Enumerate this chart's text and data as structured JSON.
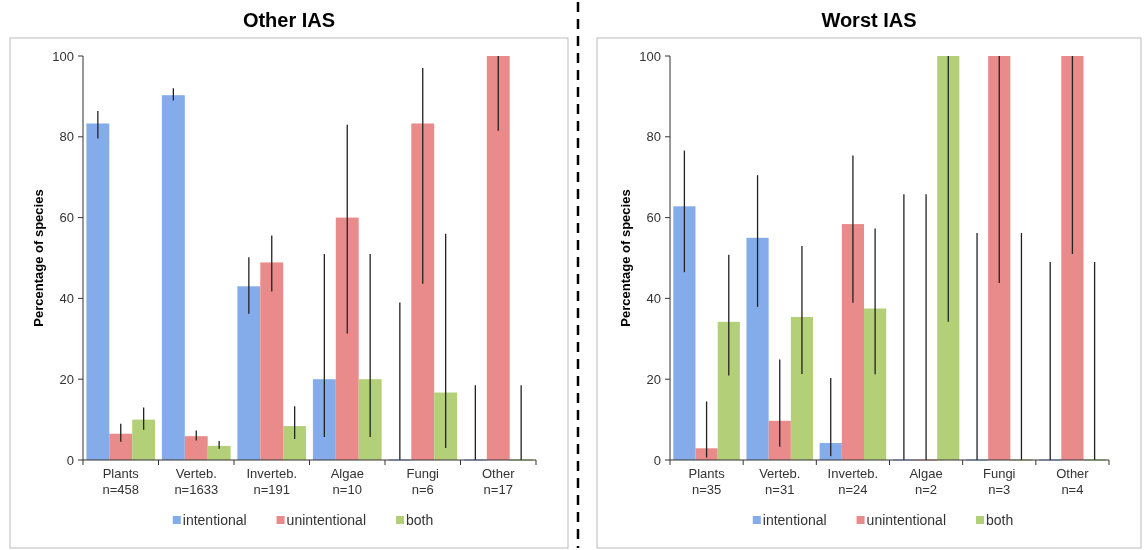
{
  "chart_data": [
    {
      "type": "bar",
      "title": "Other IAS",
      "ylabel": "Percentage of species",
      "categories": [
        "Plants\nn=458",
        "Verteb.\nn=1633",
        "Inverteb.\nn=191",
        "Algae\nn=10",
        "Fungi\nn=6",
        "Other\nn=17"
      ],
      "ylim": [
        0,
        100
      ],
      "yticks": [
        0,
        20,
        40,
        60,
        80,
        100
      ],
      "legend": "bottom",
      "grid": false,
      "series": [
        {
          "name": "intentional",
          "color": "#85acea",
          "values": [
            83.3,
            90.3,
            43,
            20,
            0,
            0
          ],
          "errors": [
            [
              79.6,
              86.4
            ],
            [
              89,
              92
            ],
            [
              36.2,
              50.2
            ],
            [
              5.7,
              51
            ],
            [
              0,
              39
            ],
            [
              0,
              18.5
            ]
          ]
        },
        {
          "name": "unintentional",
          "color": "#e98b8b",
          "values": [
            6.5,
            5.9,
            48.9,
            60,
            83.3,
            100
          ],
          "errors": [
            [
              4.5,
              9
            ],
            [
              4.8,
              7.3
            ],
            [
              41.7,
              55.6
            ],
            [
              31.3,
              83
            ],
            [
              43.6,
              97
            ],
            [
              81.5,
              100
            ]
          ]
        },
        {
          "name": "both",
          "color": "#b3d078",
          "values": [
            10,
            3.5,
            8.4,
            20,
            16.7,
            0
          ],
          "errors": [
            [
              7.5,
              13
            ],
            [
              2.8,
              4.7
            ],
            [
              5.2,
              13.3
            ],
            [
              5.7,
              51
            ],
            [
              3,
              56
            ],
            [
              0,
              18.5
            ]
          ]
        }
      ]
    },
    {
      "type": "bar",
      "title": "Worst IAS",
      "ylabel": "Percentage of species",
      "categories": [
        "Plants\nn=35",
        "Verteb.\nn=31",
        "Inverteb.\nn=24",
        "Algae\nn=2",
        "Fungi\nn=3",
        "Other\nn=4"
      ],
      "ylim": [
        0,
        100
      ],
      "yticks": [
        0,
        20,
        40,
        60,
        80,
        100
      ],
      "legend": "bottom",
      "grid": false,
      "series": [
        {
          "name": "intentional",
          "color": "#85acea",
          "values": [
            62.8,
            55,
            4.2,
            0,
            0,
            0
          ],
          "errors": [
            [
              46.5,
              76.6
            ],
            [
              37.9,
              70.5
            ],
            [
              0.9,
              20.3
            ],
            [
              0,
              65.8
            ],
            [
              0,
              56.2
            ],
            [
              0,
              49
            ]
          ]
        },
        {
          "name": "unintentional",
          "color": "#e98b8b",
          "values": [
            2.9,
            9.7,
            58.4,
            0,
            100,
            100
          ],
          "errors": [
            [
              0.6,
              14.5
            ],
            [
              3.3,
              24.9
            ],
            [
              38.9,
              75.4
            ],
            [
              0,
              65.8
            ],
            [
              43.8,
              100
            ],
            [
              51,
              100
            ]
          ]
        },
        {
          "name": "both",
          "color": "#b3d078",
          "values": [
            34.2,
            35.4,
            37.5,
            100,
            0,
            0
          ],
          "errors": [
            [
              20.9,
              50.8
            ],
            [
              21.3,
              53
            ],
            [
              21.2,
              57.3
            ],
            [
              34.2,
              100
            ],
            [
              0,
              56.2
            ],
            [
              0,
              49
            ]
          ]
        }
      ]
    }
  ]
}
